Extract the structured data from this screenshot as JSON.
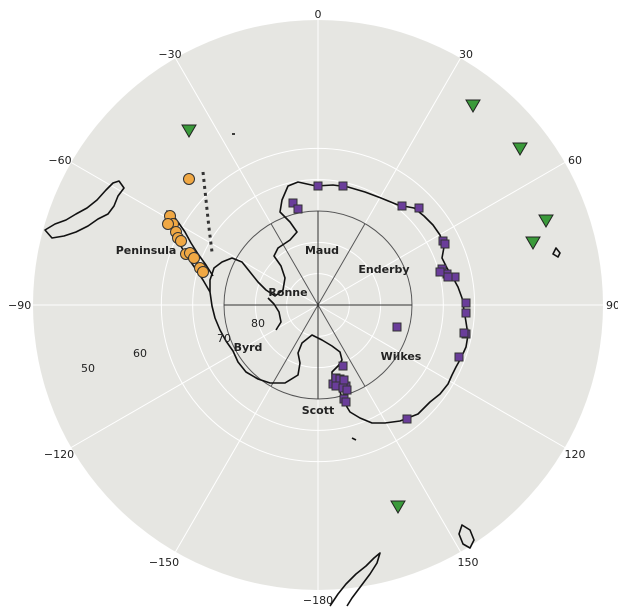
{
  "map": {
    "projection": "south-polar-stereographic",
    "background_color": "#e6e6e2",
    "grid_color": "#ffffff",
    "longitude_ticks": [
      {
        "lon": 0,
        "label": "0"
      },
      {
        "lon": 30,
        "label": "30"
      },
      {
        "lon": 60,
        "label": "60"
      },
      {
        "lon": 90,
        "label": "90"
      },
      {
        "lon": 120,
        "label": "120"
      },
      {
        "lon": 150,
        "label": "150"
      },
      {
        "lon": 180,
        "label": "−180"
      },
      {
        "lon": -150,
        "label": "−150"
      },
      {
        "lon": -120,
        "label": "−120"
      },
      {
        "lon": -90,
        "label": "−90"
      },
      {
        "lon": -60,
        "label": "−60"
      },
      {
        "lon": -30,
        "label": "−30"
      }
    ],
    "latitude_labels": [
      "80",
      "70",
      "60",
      "50"
    ],
    "region_lines": {
      "boundary_latitude": -60,
      "inner_latitude": -80,
      "longitudes": [
        -30,
        30,
        150,
        -150
      ],
      "color": "#555555"
    },
    "region_labels": [
      {
        "id": "peninsula",
        "text": "Peninsula"
      },
      {
        "id": "maud",
        "text": "Maud"
      },
      {
        "id": "enderby",
        "text": "Enderby"
      },
      {
        "id": "ronne",
        "text": "Ronne"
      },
      {
        "id": "byrd",
        "text": "Byrd"
      },
      {
        "id": "wilkes",
        "text": "Wilkes"
      },
      {
        "id": "scott",
        "text": "Scott"
      }
    ],
    "peninsula_boundary_style": "dotted",
    "markers": {
      "circle": {
        "fill": "#f0a844",
        "stroke": "#333333"
      },
      "square": {
        "fill": "#6a3d9a",
        "stroke": "#333333"
      },
      "triangle": {
        "fill": "#3a9a3a",
        "stroke": "#222222"
      }
    }
  }
}
